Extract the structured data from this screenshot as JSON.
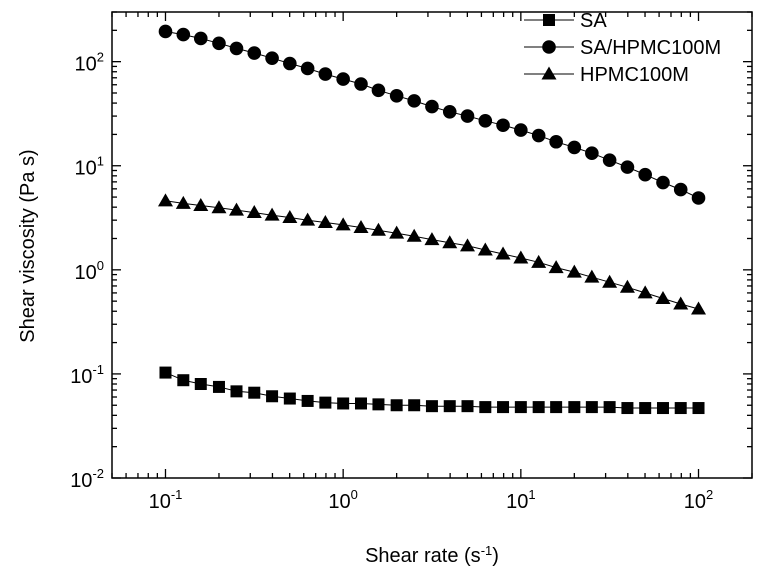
{
  "chart_data": {
    "type": "scatter",
    "xlabel_main": "Shear rate (s",
    "xlabel_sup": "-1",
    "xlabel_tail": ")",
    "ylabel": "Shear viscosity (Pa s)",
    "xscale": "log",
    "yscale": "log",
    "xlim": [
      0.05,
      200
    ],
    "ylim": [
      0.01,
      300
    ],
    "x_ticks": [
      {
        "value": 0.1,
        "base": "10",
        "exp": "-1"
      },
      {
        "value": 1,
        "base": "10",
        "exp": "0"
      },
      {
        "value": 10,
        "base": "10",
        "exp": "1"
      },
      {
        "value": 100,
        "base": "10",
        "exp": "2"
      }
    ],
    "y_ticks": [
      {
        "value": 0.01,
        "base": "10",
        "exp": "-2"
      },
      {
        "value": 0.1,
        "base": "10",
        "exp": "-1"
      },
      {
        "value": 1,
        "base": "10",
        "exp": "0"
      },
      {
        "value": 10,
        "base": "10",
        "exp": "1"
      },
      {
        "value": 100,
        "base": "10",
        "exp": "2"
      }
    ],
    "grid": false,
    "legend_position": "top-right",
    "series": [
      {
        "name": "SA",
        "marker": "square",
        "x": [
          0.1,
          0.126,
          0.158,
          0.2,
          0.251,
          0.316,
          0.398,
          0.501,
          0.631,
          0.794,
          1.0,
          1.26,
          1.58,
          2.0,
          2.51,
          3.16,
          3.98,
          5.01,
          6.31,
          7.94,
          10.0,
          12.6,
          15.8,
          20.0,
          25.1,
          31.6,
          39.8,
          50.1,
          63.1,
          79.4,
          100
        ],
        "y": [
          0.103,
          0.087,
          0.08,
          0.075,
          0.068,
          0.066,
          0.061,
          0.058,
          0.055,
          0.053,
          0.052,
          0.052,
          0.051,
          0.05,
          0.05,
          0.049,
          0.049,
          0.049,
          0.048,
          0.048,
          0.048,
          0.048,
          0.048,
          0.048,
          0.048,
          0.048,
          0.047,
          0.047,
          0.047,
          0.047,
          0.047
        ]
      },
      {
        "name": "SA/HPMC100M",
        "marker": "circle",
        "x": [
          0.1,
          0.126,
          0.158,
          0.2,
          0.251,
          0.316,
          0.398,
          0.501,
          0.631,
          0.794,
          1.0,
          1.26,
          1.58,
          2.0,
          2.51,
          3.16,
          3.98,
          5.01,
          6.31,
          7.94,
          10.0,
          12.6,
          15.8,
          20.0,
          25.1,
          31.6,
          39.8,
          50.1,
          63.1,
          79.4,
          100
        ],
        "y": [
          195,
          182,
          167,
          150,
          134,
          121,
          108,
          96,
          86,
          76,
          68,
          61,
          53,
          47,
          42,
          37,
          33,
          30,
          27,
          24.5,
          22,
          19.5,
          17,
          15,
          13.2,
          11.3,
          9.7,
          8.2,
          6.9,
          5.9,
          4.9
        ]
      },
      {
        "name": "HPMC100M",
        "marker": "triangle",
        "x": [
          0.1,
          0.126,
          0.158,
          0.2,
          0.251,
          0.316,
          0.398,
          0.501,
          0.631,
          0.794,
          1.0,
          1.26,
          1.58,
          2.0,
          2.51,
          3.16,
          3.98,
          5.01,
          6.31,
          7.94,
          10.0,
          12.6,
          15.8,
          20.0,
          25.1,
          31.6,
          39.8,
          50.1,
          63.1,
          79.4,
          100
        ],
        "y": [
          4.6,
          4.35,
          4.15,
          3.95,
          3.75,
          3.55,
          3.35,
          3.18,
          3.0,
          2.85,
          2.7,
          2.55,
          2.4,
          2.25,
          2.1,
          1.95,
          1.82,
          1.7,
          1.55,
          1.42,
          1.3,
          1.18,
          1.05,
          0.95,
          0.85,
          0.76,
          0.68,
          0.6,
          0.53,
          0.47,
          0.42
        ]
      }
    ]
  }
}
